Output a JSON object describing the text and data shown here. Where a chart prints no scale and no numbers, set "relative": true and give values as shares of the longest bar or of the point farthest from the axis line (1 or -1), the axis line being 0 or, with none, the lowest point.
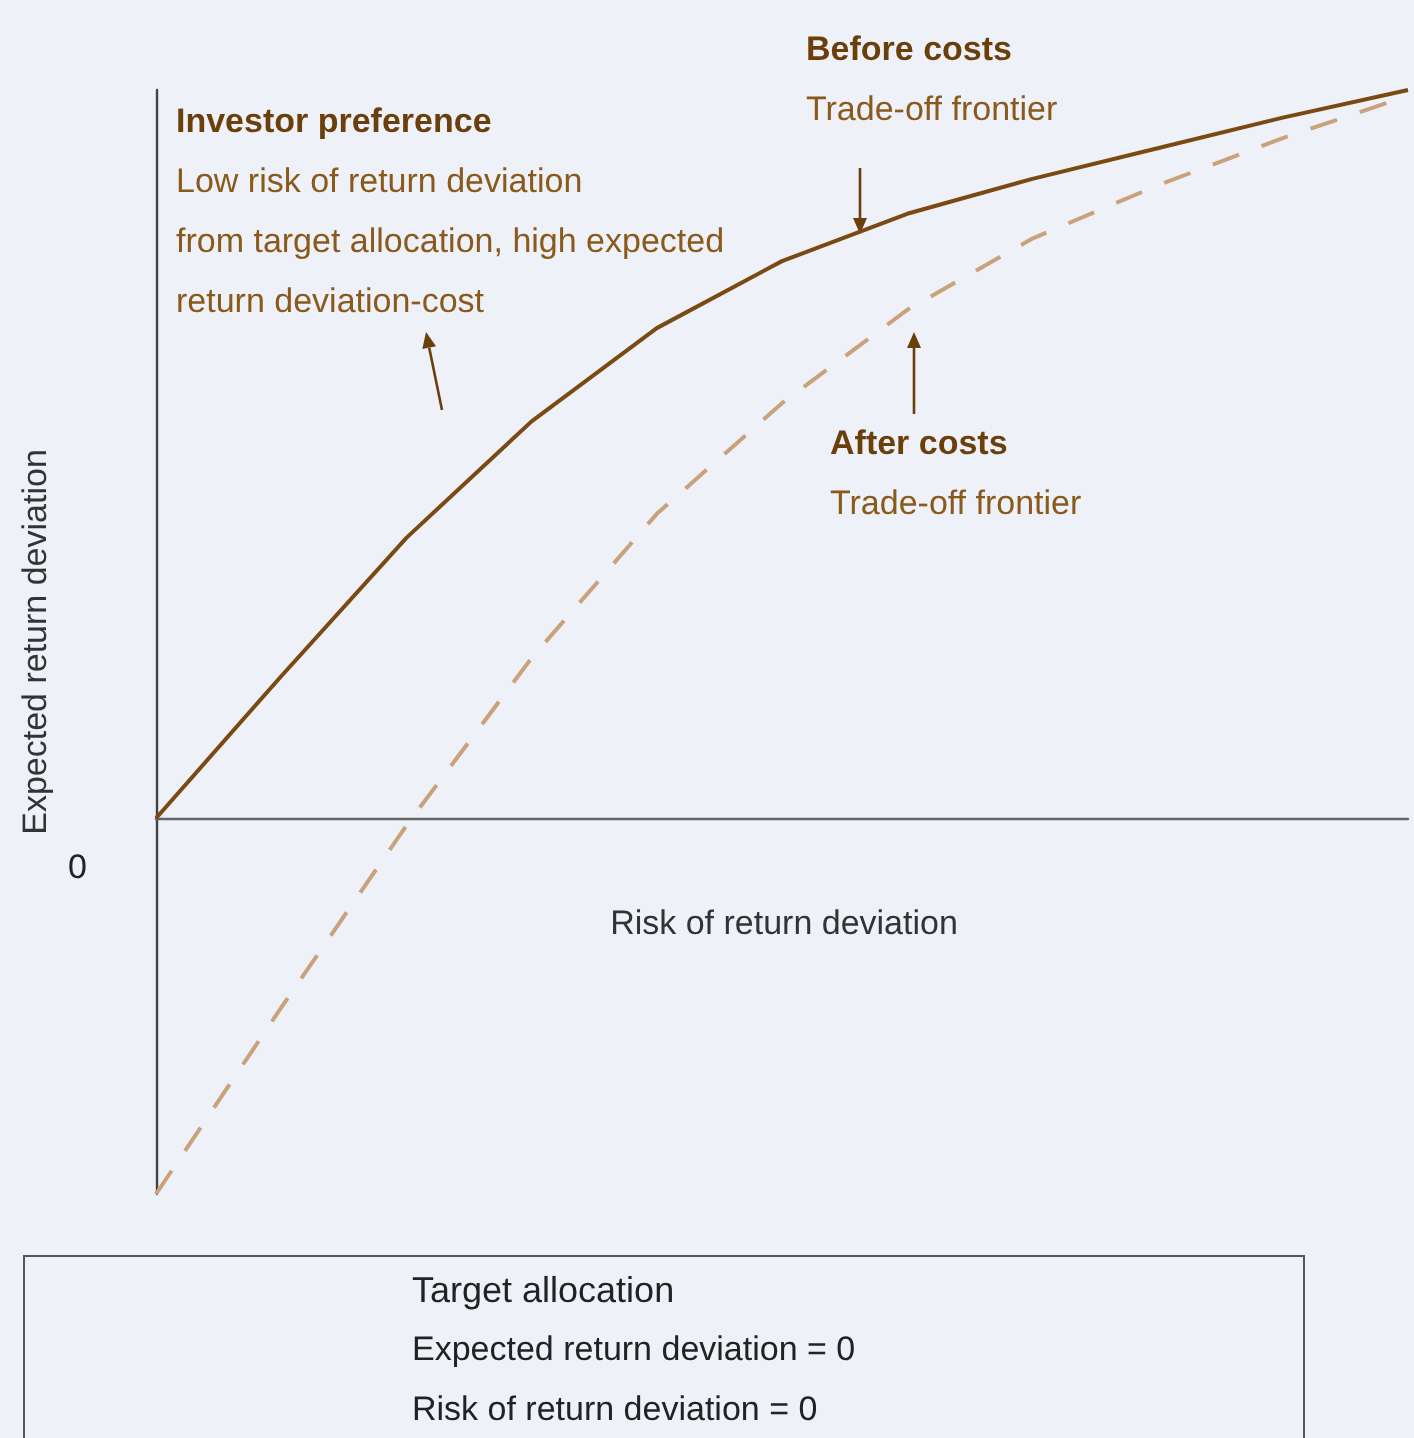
{
  "chart_data": {
    "type": "line",
    "relative": true,
    "xlabel": "Risk of return deviation",
    "ylabel": "Expected return deviation",
    "categories": [
      null,
      null,
      null,
      null,
      null,
      null,
      null,
      null,
      null,
      null,
      null
    ],
    "marker": "none",
    "series": [
      {
        "color": "#7a4a12",
        "line_style": "solid",
        "values": [
          0,
          0.195,
          0.385,
          0.545,
          0.673,
          0.765,
          0.83,
          0.878,
          0.92,
          0.962,
          1
        ]
      },
      {
        "color": "#c9a27c",
        "line_style": "dashed",
        "values": [
          -0.516,
          -0.26,
          -0.01,
          0.22,
          0.418,
          0.57,
          0.698,
          0.796,
          0.869,
          0.934,
          0.992
        ]
      }
    ],
    "annotations": [
      "Investor preference\nLow risk of return deviation\nfrom target allocation, high expected\nreturn deviation-cost",
      "Before costs\nTrade-off frontier",
      "After costs\nTrade-off frontier",
      "0",
      "Target allocation\nExpected return deviation = 0\nRisk of return deviation = 0"
    ]
  }
}
